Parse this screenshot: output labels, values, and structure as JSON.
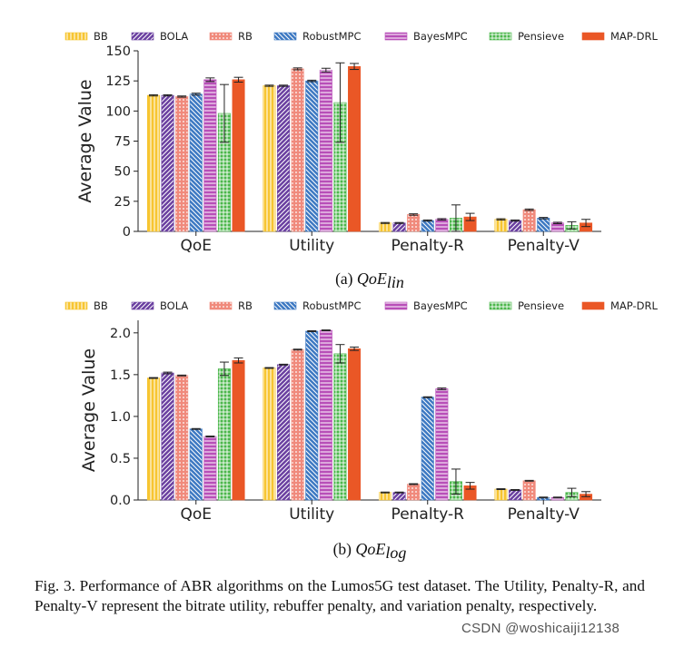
{
  "chart_data": [
    {
      "type": "bar",
      "subcaption_label": "(a)",
      "subcaption_math_base": "QoE",
      "subcaption_math_sub": "lin",
      "ylabel": "Average Value",
      "xlabel": "",
      "ylim": [
        0,
        150
      ],
      "yticks": [
        0,
        25,
        50,
        75,
        100,
        125,
        150
      ],
      "tick_decimals": 0,
      "categories": [
        "QoE",
        "Utility",
        "Penalty-R",
        "Penalty-V"
      ],
      "legend_location": "top",
      "series": [
        {
          "name": "BB",
          "values": [
            113,
            121,
            7,
            10
          ],
          "errors": [
            0.5,
            0.5,
            0.4,
            0.5
          ]
        },
        {
          "name": "BOLA",
          "values": [
            113,
            121,
            7,
            9
          ],
          "errors": [
            0.5,
            0.5,
            0.4,
            0.5
          ]
        },
        {
          "name": "RB",
          "values": [
            112,
            135,
            14,
            18
          ],
          "errors": [
            0.5,
            0.8,
            0.6,
            0.6
          ]
        },
        {
          "name": "RobustMPC",
          "values": [
            114,
            125,
            9,
            11
          ],
          "errors": [
            0.8,
            0.6,
            0.5,
            0.6
          ]
        },
        {
          "name": "BayesMPC",
          "values": [
            126,
            134,
            10,
            7
          ],
          "errors": [
            1.5,
            1.5,
            0.6,
            0.6
          ]
        },
        {
          "name": "Pensieve",
          "values": [
            98,
            107,
            11,
            5
          ],
          "errors": [
            24,
            33,
            11,
            3
          ]
        },
        {
          "name": "MAP-DRL",
          "values": [
            126,
            137,
            12,
            7
          ],
          "errors": [
            2,
            2.5,
            3,
            3
          ]
        }
      ]
    },
    {
      "type": "bar",
      "subcaption_label": "(b)",
      "subcaption_math_base": "QoE",
      "subcaption_math_sub": "log",
      "ylabel": "Average Value",
      "xlabel": "",
      "ylim": [
        0,
        2.15
      ],
      "yticks": [
        0.0,
        0.5,
        1.0,
        1.5,
        2.0
      ],
      "tick_decimals": 1,
      "categories": [
        "QoE",
        "Utility",
        "Penalty-R",
        "Penalty-V"
      ],
      "legend_location": "top",
      "series": [
        {
          "name": "BB",
          "values": [
            1.46,
            1.58,
            0.09,
            0.13
          ],
          "errors": [
            0.005,
            0.005,
            0.005,
            0.005
          ]
        },
        {
          "name": "BOLA",
          "values": [
            1.52,
            1.62,
            0.09,
            0.12
          ],
          "errors": [
            0.01,
            0.005,
            0.005,
            0.005
          ]
        },
        {
          "name": "RB",
          "values": [
            1.49,
            1.8,
            0.19,
            0.23
          ],
          "errors": [
            0.005,
            0.005,
            0.005,
            0.005
          ]
        },
        {
          "name": "RobustMPC",
          "values": [
            0.85,
            2.02,
            1.23,
            0.03
          ],
          "errors": [
            0.005,
            0.005,
            0.005,
            0.005
          ]
        },
        {
          "name": "BayesMPC",
          "values": [
            0.76,
            2.03,
            1.33,
            0.03
          ],
          "errors": [
            0.005,
            0.005,
            0.01,
            0.005
          ]
        },
        {
          "name": "Pensieve",
          "values": [
            1.57,
            1.75,
            0.22,
            0.09
          ],
          "errors": [
            0.08,
            0.11,
            0.15,
            0.05
          ]
        },
        {
          "name": "MAP-DRL",
          "values": [
            1.67,
            1.81,
            0.17,
            0.07
          ],
          "errors": [
            0.03,
            0.02,
            0.04,
            0.03
          ]
        }
      ]
    }
  ],
  "colors": {
    "BB": "#f7c531",
    "BOLA": "#6a3fa0",
    "RB": "#f08a7c",
    "RobustMPC": "#3c78c2",
    "BayesMPC": "#b84fb8",
    "Pensieve": "#4cb74c",
    "MAP-DRL": "#ea5726"
  },
  "figure_caption": "Fig. 3.  Performance of ABR algorithms on the Lumos5G test dataset. The Utility, Penalty-R, and Penalty-V represent the bitrate utility, rebuffer penalty, and variation penalty, respectively.",
  "watermark": "CSDN @woshicaiji12138"
}
